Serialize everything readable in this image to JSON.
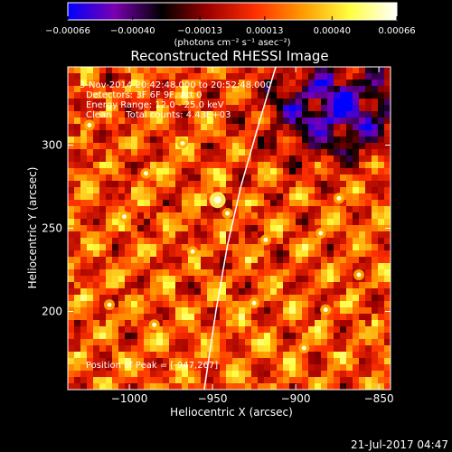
{
  "chart_data": {
    "type": "heatmap",
    "title": "Reconstructed RHESSI Image",
    "xlabel": "Heliocentric X (arcsec)",
    "ylabel": "Heliocentric Y (arcsec)",
    "xlim": [
      -1037,
      -843
    ],
    "ylim": [
      153,
      347
    ],
    "x_ticks": [
      -1000,
      -950,
      -900,
      -850
    ],
    "x_tick_labels": [
      "−1000",
      "−950",
      "−900",
      "−850"
    ],
    "y_ticks": [
      200,
      250,
      300
    ],
    "y_tick_labels": [
      "200",
      "250",
      "300"
    ],
    "colorbar": {
      "min": -0.00066,
      "max": 0.00066,
      "ticks": [
        -0.00066,
        -0.0004,
        -0.00013,
        0.00013,
        0.0004,
        0.00066
      ],
      "tick_labels": [
        "−0.00066",
        "−0.00040",
        "−0.00013",
        "0.00013",
        "0.00040",
        "0.00066"
      ],
      "units_label": "(photons cm⁻² s⁻¹ asec⁻²)",
      "colormap": [
        "#0000ff",
        "#7a00b0",
        "#000000",
        "#a00000",
        "#ff3000",
        "#ff9a00",
        "#ffff40",
        "#ffffff"
      ]
    },
    "annotations": [
      "3-Nov-2014 20:42:48.000 to 20:52:48.000",
      "Detectors: 3F 6F 9F, Att 0",
      "Energy Range: 12.0 - 25.0 keV",
      "Clean     Total counts: 4.43E+03",
      "Position of Peak = [-947,267]"
    ],
    "peak": {
      "x": -947,
      "y": 267
    },
    "limb": [
      {
        "x": -955,
        "y": 153
      },
      {
        "x": -948,
        "y": 200
      },
      {
        "x": -941,
        "y": 240
      },
      {
        "x": -933,
        "y": 275
      },
      {
        "x": -923,
        "y": 310
      },
      {
        "x": -912,
        "y": 347
      }
    ],
    "bright_sources": [
      {
        "x": -947,
        "y": 267
      },
      {
        "x": -941,
        "y": 259
      },
      {
        "x": -918,
        "y": 243
      },
      {
        "x": -874,
        "y": 268
      },
      {
        "x": -885,
        "y": 247
      },
      {
        "x": -1024,
        "y": 312
      },
      {
        "x": -1003,
        "y": 257
      },
      {
        "x": -895,
        "y": 178
      },
      {
        "x": -882,
        "y": 201
      },
      {
        "x": -1012,
        "y": 204
      },
      {
        "x": -985,
        "y": 192
      },
      {
        "x": -962,
        "y": 236
      },
      {
        "x": -990,
        "y": 283
      },
      {
        "x": -862,
        "y": 222
      },
      {
        "x": -925,
        "y": 205
      },
      {
        "x": -968,
        "y": 301
      }
    ]
  },
  "footer": {
    "date": "21-Jul-2017 04:47"
  }
}
